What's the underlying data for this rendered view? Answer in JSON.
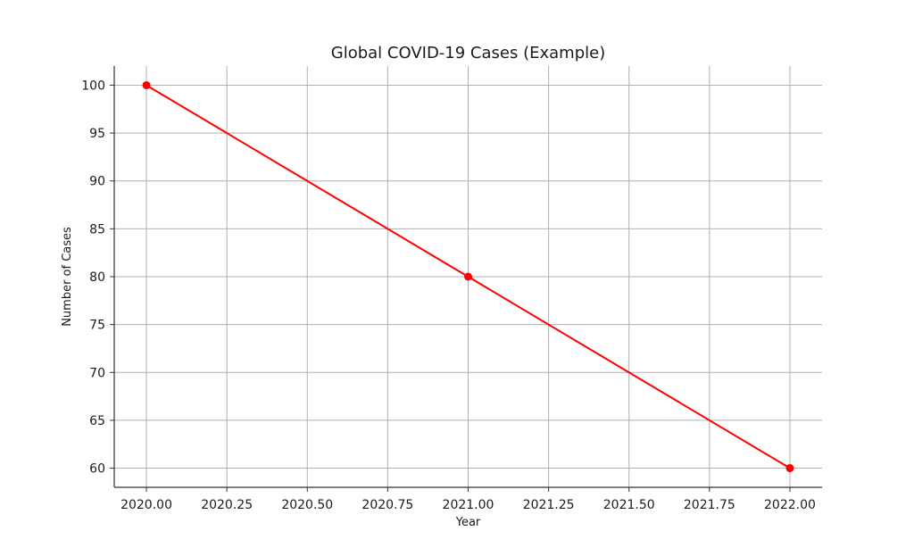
{
  "chart_data": {
    "type": "line",
    "title": "Global COVID-19 Cases (Example)",
    "xlabel": "Year",
    "ylabel": "Number of Cases",
    "xlim": [
      1999.9,
      2022.1
    ],
    "ylim": [
      58,
      102
    ],
    "x_ticks": [
      2020.0,
      2020.25,
      2020.5,
      2020.75,
      2021.0,
      2021.25,
      2021.5,
      2021.75,
      2022.0
    ],
    "x_tick_labels": [
      "2020.00",
      "2020.25",
      "2020.50",
      "2020.75",
      "2021.00",
      "2021.25",
      "2021.50",
      "2021.75",
      "2022.00"
    ],
    "y_ticks": [
      60,
      65,
      70,
      75,
      80,
      85,
      90,
      95,
      100
    ],
    "y_tick_labels": [
      "60",
      "65",
      "70",
      "75",
      "80",
      "85",
      "90",
      "95",
      "100"
    ],
    "grid": true,
    "series": [
      {
        "x": [
          2020,
          2021,
          2022
        ],
        "values": [
          100,
          80,
          60
        ],
        "color": "#ff0000",
        "marker": "circle"
      }
    ]
  }
}
